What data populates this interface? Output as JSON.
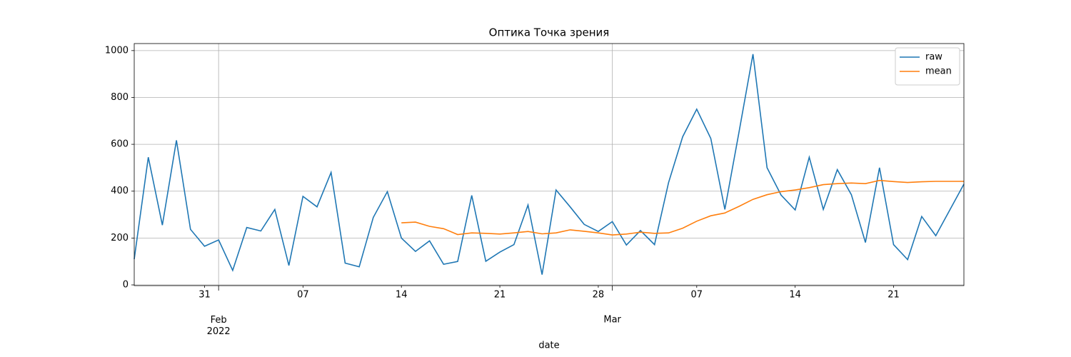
{
  "chart_data": {
    "type": "line",
    "title": "Оптика Точка зрения",
    "xlabel": "date",
    "x": [
      "2022-01-26",
      "2022-01-27",
      "2022-01-28",
      "2022-01-29",
      "2022-01-30",
      "2022-01-31",
      "2022-02-01",
      "2022-02-02",
      "2022-02-03",
      "2022-02-04",
      "2022-02-05",
      "2022-02-06",
      "2022-02-07",
      "2022-02-08",
      "2022-02-09",
      "2022-02-10",
      "2022-02-11",
      "2022-02-12",
      "2022-02-13",
      "2022-02-14",
      "2022-02-15",
      "2022-02-16",
      "2022-02-17",
      "2022-02-18",
      "2022-02-19",
      "2022-02-20",
      "2022-02-21",
      "2022-02-22",
      "2022-02-23",
      "2022-02-24",
      "2022-02-25",
      "2022-02-26",
      "2022-02-27",
      "2022-02-28",
      "2022-03-01",
      "2022-03-02",
      "2022-03-03",
      "2022-03-04",
      "2022-03-05",
      "2022-03-06",
      "2022-03-07",
      "2022-03-08",
      "2022-03-09",
      "2022-03-10",
      "2022-03-11",
      "2022-03-12",
      "2022-03-13",
      "2022-03-14",
      "2022-03-15",
      "2022-03-16",
      "2022-03-17",
      "2022-03-18",
      "2022-03-19",
      "2022-03-20",
      "2022-03-21",
      "2022-03-22",
      "2022-03-23",
      "2022-03-24",
      "2022-03-25",
      "2022-03-26"
    ],
    "series": [
      {
        "name": "raw",
        "color": "#1f77b4",
        "values": [
          110,
          545,
          255,
          617,
          237,
          165,
          192,
          62,
          245,
          230,
          322,
          83,
          378,
          333,
          480,
          93,
          77,
          288,
          398,
          200,
          143,
          188,
          88,
          100,
          382,
          101,
          140,
          172,
          341,
          44,
          405,
          333,
          258,
          228,
          270,
          170,
          232,
          172,
          437,
          632,
          750,
          625,
          322,
          650,
          985,
          500,
          383,
          320,
          545,
          322,
          492,
          385,
          181,
          500,
          172,
          108,
          292,
          210,
          320,
          430
        ]
      },
      {
        "name": "mean",
        "color": "#ff7f0e",
        "values": [
          null,
          null,
          null,
          null,
          null,
          null,
          null,
          null,
          null,
          null,
          null,
          null,
          null,
          null,
          null,
          null,
          null,
          null,
          null,
          265,
          268,
          250,
          240,
          215,
          222,
          220,
          217,
          222,
          228,
          218,
          222,
          235,
          229,
          222,
          213,
          217,
          225,
          220,
          222,
          242,
          272,
          295,
          307,
          335,
          365,
          385,
          398,
          405,
          415,
          428,
          432,
          435,
          432,
          446,
          441,
          437,
          440,
          442,
          442,
          442
        ]
      }
    ],
    "xlim": [
      "2022-01-26",
      "2022-03-26"
    ],
    "xticks": [
      {
        "value": "2022-01-31",
        "label": "31"
      },
      {
        "value": "2022-02-01",
        "label": "Feb\n2022",
        "major": true
      },
      {
        "value": "2022-02-07",
        "label": "07"
      },
      {
        "value": "2022-02-14",
        "label": "14"
      },
      {
        "value": "2022-02-21",
        "label": "21"
      },
      {
        "value": "2022-02-28",
        "label": "28"
      },
      {
        "value": "2022-03-01",
        "label": "Mar",
        "major": true
      },
      {
        "value": "2022-03-07",
        "label": "07"
      },
      {
        "value": "2022-03-14",
        "label": "14"
      },
      {
        "value": "2022-03-21",
        "label": "21"
      }
    ],
    "ylim": [
      -3,
      1030
    ],
    "yticks": [
      0,
      200,
      400,
      600,
      800,
      1000
    ],
    "grid": true,
    "legend": "upper right"
  }
}
